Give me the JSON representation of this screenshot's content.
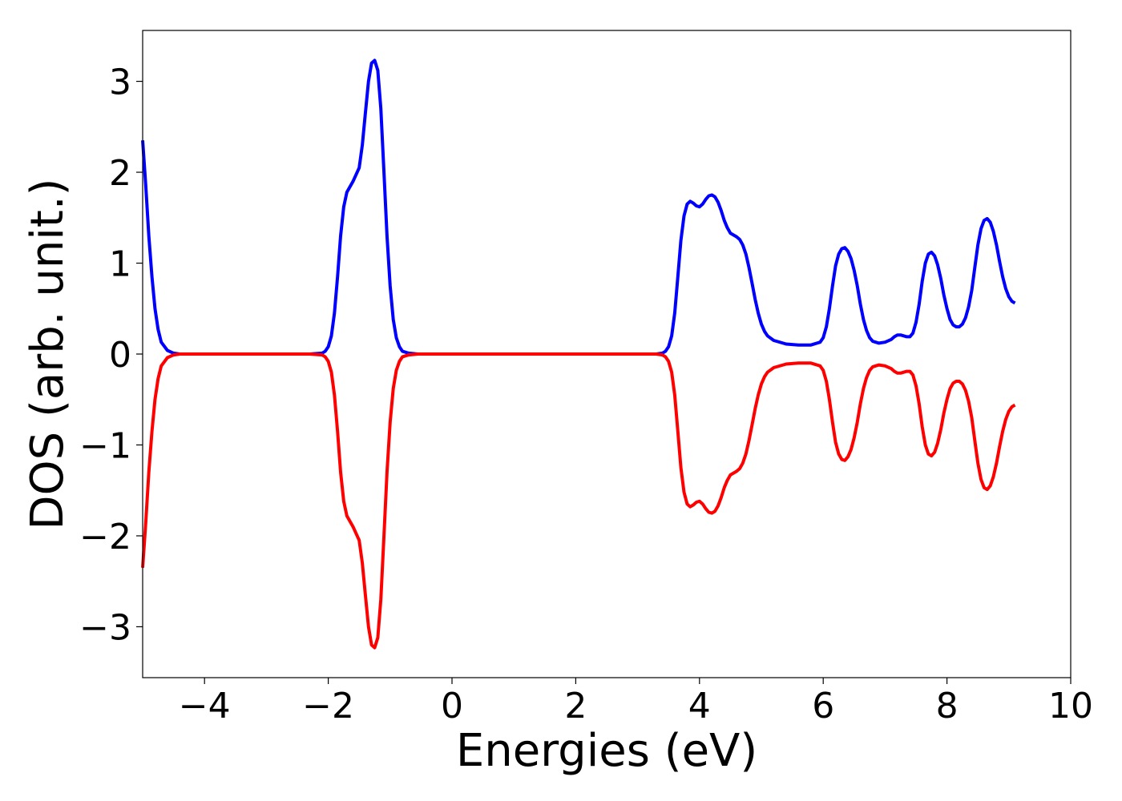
{
  "chart_data": {
    "type": "line",
    "xlabel": "Energies (eV)",
    "ylabel": "DOS (arb. unit.)",
    "xlim": [
      -5,
      10
    ],
    "ylim": [
      -3.56,
      3.56
    ],
    "grid": false,
    "x_ticks": [
      {
        "value": -4,
        "label": "−4"
      },
      {
        "value": -2,
        "label": "−2"
      },
      {
        "value": 0,
        "label": "0"
      },
      {
        "value": 2,
        "label": "2"
      },
      {
        "value": 4,
        "label": "4"
      },
      {
        "value": 6,
        "label": "6"
      },
      {
        "value": 8,
        "label": "8"
      },
      {
        "value": 10,
        "label": "10"
      }
    ],
    "y_ticks": [
      {
        "value": 3,
        "label": "3"
      },
      {
        "value": 2,
        "label": "2"
      },
      {
        "value": 1,
        "label": "1"
      },
      {
        "value": 0,
        "label": "0"
      },
      {
        "value": -1,
        "label": "−1"
      },
      {
        "value": -2,
        "label": "−2"
      },
      {
        "value": -3,
        "label": "−3"
      }
    ],
    "series": [
      {
        "color": "#0000ff",
        "points": [
          [
            -5.0,
            2.35
          ],
          [
            -4.95,
            1.85
          ],
          [
            -4.9,
            1.3
          ],
          [
            -4.85,
            0.85
          ],
          [
            -4.8,
            0.5
          ],
          [
            -4.75,
            0.27
          ],
          [
            -4.7,
            0.13
          ],
          [
            -4.6,
            0.04
          ],
          [
            -4.5,
            0.01
          ],
          [
            -4.4,
            0.0
          ],
          [
            -2.3,
            0.0
          ],
          [
            -2.1,
            0.01
          ],
          [
            -2.05,
            0.03
          ],
          [
            -2.0,
            0.08
          ],
          [
            -1.95,
            0.2
          ],
          [
            -1.9,
            0.45
          ],
          [
            -1.85,
            0.85
          ],
          [
            -1.8,
            1.3
          ],
          [
            -1.75,
            1.62
          ],
          [
            -1.7,
            1.78
          ],
          [
            -1.6,
            1.9
          ],
          [
            -1.5,
            2.05
          ],
          [
            -1.45,
            2.3
          ],
          [
            -1.4,
            2.65
          ],
          [
            -1.35,
            3.0
          ],
          [
            -1.3,
            3.2
          ],
          [
            -1.25,
            3.23
          ],
          [
            -1.2,
            3.12
          ],
          [
            -1.15,
            2.7
          ],
          [
            -1.1,
            2.0
          ],
          [
            -1.05,
            1.3
          ],
          [
            -1.0,
            0.75
          ],
          [
            -0.95,
            0.38
          ],
          [
            -0.9,
            0.18
          ],
          [
            -0.85,
            0.08
          ],
          [
            -0.8,
            0.03
          ],
          [
            -0.7,
            0.01
          ],
          [
            -0.55,
            0.0
          ],
          [
            3.3,
            0.0
          ],
          [
            3.4,
            0.01
          ],
          [
            3.45,
            0.03
          ],
          [
            3.5,
            0.08
          ],
          [
            3.55,
            0.2
          ],
          [
            3.6,
            0.45
          ],
          [
            3.65,
            0.85
          ],
          [
            3.7,
            1.25
          ],
          [
            3.75,
            1.52
          ],
          [
            3.8,
            1.65
          ],
          [
            3.85,
            1.68
          ],
          [
            3.9,
            1.66
          ],
          [
            3.95,
            1.63
          ],
          [
            4.0,
            1.62
          ],
          [
            4.05,
            1.65
          ],
          [
            4.1,
            1.7
          ],
          [
            4.15,
            1.74
          ],
          [
            4.2,
            1.75
          ],
          [
            4.25,
            1.73
          ],
          [
            4.3,
            1.67
          ],
          [
            4.35,
            1.58
          ],
          [
            4.4,
            1.47
          ],
          [
            4.45,
            1.39
          ],
          [
            4.5,
            1.33
          ],
          [
            4.6,
            1.29
          ],
          [
            4.65,
            1.26
          ],
          [
            4.7,
            1.2
          ],
          [
            4.75,
            1.1
          ],
          [
            4.8,
            0.95
          ],
          [
            4.85,
            0.78
          ],
          [
            4.9,
            0.6
          ],
          [
            4.95,
            0.45
          ],
          [
            5.0,
            0.33
          ],
          [
            5.05,
            0.25
          ],
          [
            5.1,
            0.2
          ],
          [
            5.2,
            0.15
          ],
          [
            5.4,
            0.11
          ],
          [
            5.6,
            0.1
          ],
          [
            5.8,
            0.1
          ],
          [
            5.95,
            0.13
          ],
          [
            6.0,
            0.18
          ],
          [
            6.05,
            0.3
          ],
          [
            6.1,
            0.5
          ],
          [
            6.15,
            0.75
          ],
          [
            6.2,
            0.97
          ],
          [
            6.25,
            1.1
          ],
          [
            6.3,
            1.16
          ],
          [
            6.35,
            1.17
          ],
          [
            6.4,
            1.13
          ],
          [
            6.45,
            1.05
          ],
          [
            6.5,
            0.92
          ],
          [
            6.55,
            0.75
          ],
          [
            6.6,
            0.55
          ],
          [
            6.65,
            0.38
          ],
          [
            6.7,
            0.26
          ],
          [
            6.75,
            0.18
          ],
          [
            6.8,
            0.14
          ],
          [
            6.9,
            0.12
          ],
          [
            7.0,
            0.13
          ],
          [
            7.1,
            0.16
          ],
          [
            7.15,
            0.19
          ],
          [
            7.2,
            0.21
          ],
          [
            7.25,
            0.21
          ],
          [
            7.3,
            0.2
          ],
          [
            7.35,
            0.19
          ],
          [
            7.4,
            0.19
          ],
          [
            7.45,
            0.23
          ],
          [
            7.5,
            0.35
          ],
          [
            7.55,
            0.55
          ],
          [
            7.6,
            0.8
          ],
          [
            7.65,
            1.0
          ],
          [
            7.7,
            1.1
          ],
          [
            7.75,
            1.12
          ],
          [
            7.8,
            1.08
          ],
          [
            7.85,
            0.98
          ],
          [
            7.9,
            0.83
          ],
          [
            7.95,
            0.65
          ],
          [
            8.0,
            0.5
          ],
          [
            8.05,
            0.38
          ],
          [
            8.1,
            0.32
          ],
          [
            8.15,
            0.3
          ],
          [
            8.2,
            0.3
          ],
          [
            8.25,
            0.33
          ],
          [
            8.3,
            0.4
          ],
          [
            8.35,
            0.52
          ],
          [
            8.4,
            0.7
          ],
          [
            8.45,
            0.95
          ],
          [
            8.5,
            1.2
          ],
          [
            8.55,
            1.38
          ],
          [
            8.6,
            1.47
          ],
          [
            8.65,
            1.49
          ],
          [
            8.7,
            1.45
          ],
          [
            8.75,
            1.35
          ],
          [
            8.8,
            1.2
          ],
          [
            8.85,
            1.02
          ],
          [
            8.9,
            0.85
          ],
          [
            8.95,
            0.72
          ],
          [
            9.0,
            0.63
          ],
          [
            9.05,
            0.58
          ],
          [
            9.1,
            0.56
          ]
        ]
      },
      {
        "color": "#ff0000",
        "points": [
          [
            -5.0,
            -2.35
          ],
          [
            -4.95,
            -1.85
          ],
          [
            -4.9,
            -1.3
          ],
          [
            -4.85,
            -0.85
          ],
          [
            -4.8,
            -0.5
          ],
          [
            -4.75,
            -0.27
          ],
          [
            -4.7,
            -0.13
          ],
          [
            -4.6,
            -0.04
          ],
          [
            -4.5,
            -0.01
          ],
          [
            -4.4,
            0.0
          ],
          [
            -2.3,
            0.0
          ],
          [
            -2.1,
            -0.01
          ],
          [
            -2.05,
            -0.03
          ],
          [
            -2.0,
            -0.08
          ],
          [
            -1.95,
            -0.2
          ],
          [
            -1.9,
            -0.45
          ],
          [
            -1.85,
            -0.85
          ],
          [
            -1.8,
            -1.3
          ],
          [
            -1.75,
            -1.62
          ],
          [
            -1.7,
            -1.78
          ],
          [
            -1.6,
            -1.9
          ],
          [
            -1.5,
            -2.05
          ],
          [
            -1.45,
            -2.3
          ],
          [
            -1.4,
            -2.65
          ],
          [
            -1.35,
            -3.0
          ],
          [
            -1.3,
            -3.2
          ],
          [
            -1.25,
            -3.23
          ],
          [
            -1.2,
            -3.12
          ],
          [
            -1.15,
            -2.7
          ],
          [
            -1.1,
            -2.0
          ],
          [
            -1.05,
            -1.3
          ],
          [
            -1.0,
            -0.75
          ],
          [
            -0.95,
            -0.38
          ],
          [
            -0.9,
            -0.18
          ],
          [
            -0.85,
            -0.08
          ],
          [
            -0.8,
            -0.03
          ],
          [
            -0.7,
            -0.01
          ],
          [
            -0.55,
            0.0
          ],
          [
            3.3,
            0.0
          ],
          [
            3.4,
            -0.01
          ],
          [
            3.45,
            -0.03
          ],
          [
            3.5,
            -0.08
          ],
          [
            3.55,
            -0.2
          ],
          [
            3.6,
            -0.45
          ],
          [
            3.65,
            -0.85
          ],
          [
            3.7,
            -1.25
          ],
          [
            3.75,
            -1.52
          ],
          [
            3.8,
            -1.65
          ],
          [
            3.85,
            -1.68
          ],
          [
            3.9,
            -1.66
          ],
          [
            3.95,
            -1.63
          ],
          [
            4.0,
            -1.62
          ],
          [
            4.05,
            -1.65
          ],
          [
            4.1,
            -1.7
          ],
          [
            4.15,
            -1.74
          ],
          [
            4.2,
            -1.75
          ],
          [
            4.25,
            -1.73
          ],
          [
            4.3,
            -1.67
          ],
          [
            4.35,
            -1.58
          ],
          [
            4.4,
            -1.47
          ],
          [
            4.45,
            -1.39
          ],
          [
            4.5,
            -1.33
          ],
          [
            4.6,
            -1.29
          ],
          [
            4.65,
            -1.26
          ],
          [
            4.7,
            -1.2
          ],
          [
            4.75,
            -1.1
          ],
          [
            4.8,
            -0.95
          ],
          [
            4.85,
            -0.78
          ],
          [
            4.9,
            -0.6
          ],
          [
            4.95,
            -0.45
          ],
          [
            5.0,
            -0.33
          ],
          [
            5.05,
            -0.25
          ],
          [
            5.1,
            -0.2
          ],
          [
            5.2,
            -0.15
          ],
          [
            5.4,
            -0.11
          ],
          [
            5.6,
            -0.1
          ],
          [
            5.8,
            -0.1
          ],
          [
            5.95,
            -0.13
          ],
          [
            6.0,
            -0.18
          ],
          [
            6.05,
            -0.3
          ],
          [
            6.1,
            -0.5
          ],
          [
            6.15,
            -0.75
          ],
          [
            6.2,
            -0.97
          ],
          [
            6.25,
            -1.1
          ],
          [
            6.3,
            -1.16
          ],
          [
            6.35,
            -1.17
          ],
          [
            6.4,
            -1.13
          ],
          [
            6.45,
            -1.05
          ],
          [
            6.5,
            -0.92
          ],
          [
            6.55,
            -0.75
          ],
          [
            6.6,
            -0.55
          ],
          [
            6.65,
            -0.38
          ],
          [
            6.7,
            -0.26
          ],
          [
            6.75,
            -0.18
          ],
          [
            6.8,
            -0.14
          ],
          [
            6.9,
            -0.12
          ],
          [
            7.0,
            -0.13
          ],
          [
            7.1,
            -0.16
          ],
          [
            7.15,
            -0.19
          ],
          [
            7.2,
            -0.21
          ],
          [
            7.25,
            -0.21
          ],
          [
            7.3,
            -0.2
          ],
          [
            7.35,
            -0.19
          ],
          [
            7.4,
            -0.19
          ],
          [
            7.45,
            -0.23
          ],
          [
            7.5,
            -0.35
          ],
          [
            7.55,
            -0.55
          ],
          [
            7.6,
            -0.8
          ],
          [
            7.65,
            -1.0
          ],
          [
            7.7,
            -1.1
          ],
          [
            7.75,
            -1.12
          ],
          [
            7.8,
            -1.08
          ],
          [
            7.85,
            -0.98
          ],
          [
            7.9,
            -0.83
          ],
          [
            7.95,
            -0.65
          ],
          [
            8.0,
            -0.5
          ],
          [
            8.05,
            -0.38
          ],
          [
            8.1,
            -0.32
          ],
          [
            8.15,
            -0.3
          ],
          [
            8.2,
            -0.3
          ],
          [
            8.25,
            -0.33
          ],
          [
            8.3,
            -0.4
          ],
          [
            8.35,
            -0.52
          ],
          [
            8.4,
            -0.7
          ],
          [
            8.45,
            -0.95
          ],
          [
            8.5,
            -1.2
          ],
          [
            8.55,
            -1.38
          ],
          [
            8.6,
            -1.47
          ],
          [
            8.65,
            -1.49
          ],
          [
            8.7,
            -1.45
          ],
          [
            8.75,
            -1.35
          ],
          [
            8.8,
            -1.2
          ],
          [
            8.85,
            -1.02
          ],
          [
            8.9,
            -0.85
          ],
          [
            8.95,
            -0.72
          ],
          [
            9.0,
            -0.63
          ],
          [
            9.05,
            -0.58
          ],
          [
            9.1,
            -0.56
          ]
        ]
      }
    ]
  }
}
